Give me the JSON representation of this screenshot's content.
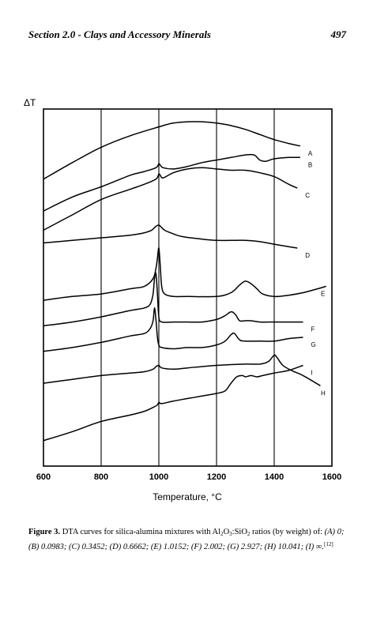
{
  "header": {
    "section": "Section 2.0 - Clays and Accessory Minerals",
    "page_number": "497"
  },
  "chart_data": {
    "type": "line",
    "title": "",
    "xlabel": "Temperature, °C",
    "ylabel": "ΔT",
    "xlim": [
      600,
      1600
    ],
    "xticks": [
      600,
      800,
      1000,
      1200,
      1400,
      1600
    ],
    "vertical_gridlines_at": [
      800,
      1000,
      1200,
      1400
    ],
    "series": [
      {
        "name": "A",
        "x": [
          600,
          700,
          800,
          900,
          1000,
          1050,
          1100,
          1150,
          1200,
          1250,
          1300,
          1350,
          1400,
          1450,
          1490
        ],
        "y": [
          50,
          63,
          75,
          84,
          91,
          94,
          95,
          95,
          94,
          92,
          89,
          85,
          81,
          78,
          76
        ]
      },
      {
        "name": "B",
        "x": [
          600,
          700,
          800,
          900,
          950,
          990,
          1000,
          1005,
          1015,
          1050,
          1100,
          1150,
          1200,
          1250,
          1300,
          1330,
          1350,
          1370,
          1400,
          1450,
          1490
        ],
        "y": [
          25,
          36,
          44,
          53,
          56,
          59,
          62,
          61,
          59,
          58,
          60,
          63,
          65,
          67,
          69,
          69,
          65,
          64,
          66,
          67,
          67
        ]
      },
      {
        "name": "C",
        "x": [
          600,
          700,
          800,
          900,
          950,
          990,
          1000,
          1005,
          1015,
          1050,
          1100,
          1150,
          1200,
          1250,
          1300,
          1350,
          1400,
          1450,
          1480
        ],
        "y": [
          10,
          22,
          34,
          42,
          46,
          50,
          54,
          53,
          51,
          55,
          58,
          59,
          58,
          57,
          57,
          55,
          52,
          46,
          43
        ]
      },
      {
        "name": "D",
        "x": [
          600,
          700,
          800,
          900,
          950,
          975,
          990,
          1000,
          1010,
          1020,
          1040,
          1080,
          1150,
          1200,
          1250,
          1300,
          1350,
          1400,
          1450,
          1480
        ],
        "y": [
          0,
          2,
          4,
          6,
          8,
          10,
          13,
          14,
          12,
          10,
          8,
          5,
          3,
          2,
          2,
          2,
          1,
          -1,
          -3,
          -4
        ]
      },
      {
        "name": "E",
        "x": [
          600,
          700,
          800,
          900,
          950,
          980,
          990,
          995,
          1000,
          1005,
          1010,
          1020,
          1050,
          1100,
          1200,
          1250,
          1280,
          1300,
          1320,
          1340,
          1360,
          1400,
          1450,
          1500,
          1550,
          1580
        ],
        "y": [
          -45,
          -42,
          -40,
          -36,
          -34,
          -28,
          -20,
          -12,
          -4,
          -18,
          -34,
          -40,
          -42,
          -42,
          -42,
          -39,
          -33,
          -30,
          -32,
          -36,
          -40,
          -42,
          -41,
          -39,
          -36,
          -34
        ]
      },
      {
        "name": "F",
        "x": [
          600,
          700,
          800,
          900,
          950,
          970,
          980,
          985,
          990,
          995,
          1000,
          1010,
          1050,
          1100,
          1150,
          1200,
          1230,
          1250,
          1265,
          1280,
          1300,
          1320,
          1350,
          1400,
          1450,
          1500
        ],
        "y": [
          -65,
          -62,
          -58,
          -53,
          -51,
          -48,
          -40,
          -28,
          -24,
          -40,
          -58,
          -62,
          -62,
          -62,
          -62,
          -60,
          -57,
          -54,
          -56,
          -61,
          -61,
          -61,
          -62,
          -62,
          -62,
          -62
        ]
      },
      {
        "name": "G",
        "x": [
          600,
          700,
          800,
          900,
          950,
          970,
          980,
          985,
          990,
          995,
          1000,
          1010,
          1050,
          1100,
          1150,
          1200,
          1230,
          1250,
          1262,
          1280,
          1300,
          1350,
          1400,
          1450,
          1500
        ],
        "y": [
          -85,
          -82,
          -78,
          -73,
          -71,
          -67,
          -61,
          -51,
          -60,
          -74,
          -80,
          -82,
          -83,
          -82,
          -82,
          -80,
          -77,
          -72,
          -71,
          -76,
          -77,
          -77,
          -77,
          -75,
          -74
        ]
      },
      {
        "name": "H",
        "x": [
          600,
          700,
          800,
          900,
          950,
          980,
          990,
          1000,
          1010,
          1050,
          1100,
          1200,
          1300,
          1350,
          1380,
          1400,
          1410,
          1430,
          1460,
          1500,
          1560
        ],
        "y": [
          -110,
          -107,
          -104,
          -102,
          -101,
          -99,
          -97,
          -96,
          -98,
          -99,
          -98,
          -96,
          -95,
          -95,
          -93,
          -88,
          -90,
          -96,
          -100,
          -104,
          -112
        ]
      },
      {
        "name": "I",
        "x": [
          600,
          700,
          800,
          900,
          950,
          980,
          995,
          1000,
          1010,
          1050,
          1100,
          1150,
          1200,
          1230,
          1250,
          1270,
          1290,
          1300,
          1320,
          1340,
          1360,
          1400,
          1450,
          1500
        ],
        "y": [
          -155,
          -148,
          -140,
          -135,
          -132,
          -129,
          -127,
          -125,
          -126,
          -124,
          -122,
          -120,
          -118,
          -116,
          -110,
          -105,
          -104,
          -105,
          -104,
          -105,
          -104,
          -102,
          -100,
          -96
        ]
      }
    ]
  },
  "caption": {
    "figure_label": "Figure 3.",
    "text_start": " DTA curves for silica-alumina mixtures with Al",
    "sub_1": "2",
    "text_mid1": "O",
    "sub_2": "3",
    "text_mid2": ":SiO",
    "sub_3": "2",
    "text_mid3": " ratios (by weight) of:",
    "list": "(A) 0; (B) 0.0983; (C) 0.3452; (D) 0.6662; (E) 1.0152; (F) 2.002; (G) 2.927; (H) 10.041; (I) ∞.",
    "ref": "[12]"
  }
}
